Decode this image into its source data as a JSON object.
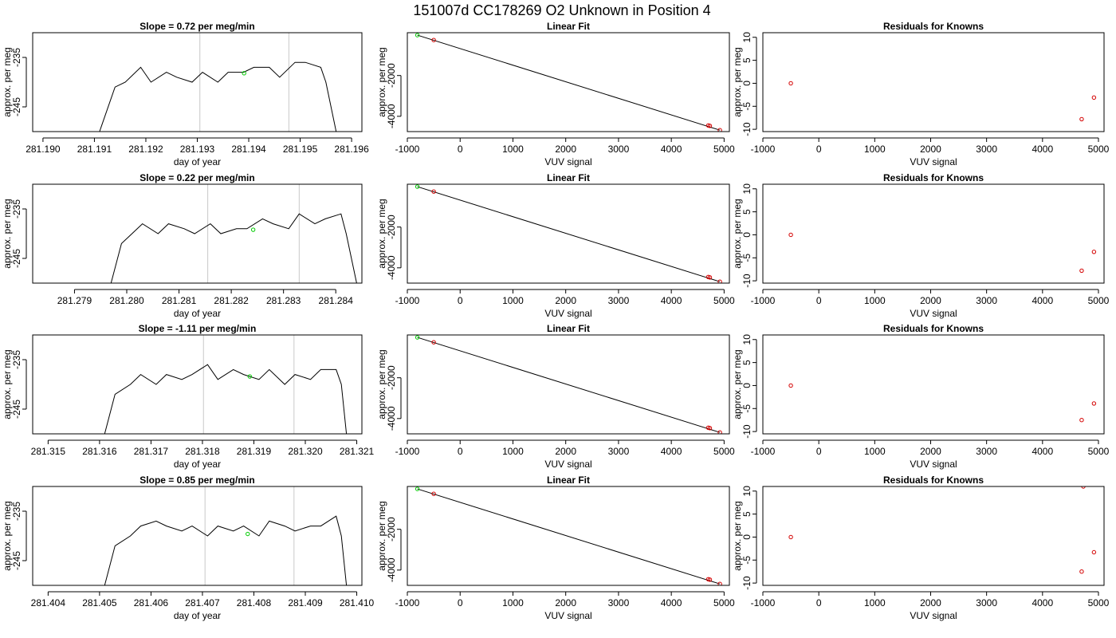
{
  "figure_title": "151007d      CC178269   O2 Unknown in Position  4",
  "chart_data": [
    {
      "id": "ts1",
      "type": "line",
      "title": "Slope =  0.72  per meg/min",
      "xlabel": "day of year",
      "ylabel": "approx. per meg",
      "xlim": [
        281.1898,
        281.1962
      ],
      "ylim": [
        -250,
        -230
      ],
      "x_ticks": [
        "281.190",
        "281.191",
        "281.192",
        "281.193",
        "281.194",
        "281.195",
        "281.196"
      ],
      "y_ticks": [
        "-235",
        "-245"
      ],
      "x": [
        281.1911,
        281.1914,
        281.1916,
        281.1919,
        281.1921,
        281.1924,
        281.1926,
        281.1929,
        281.1931,
        281.1934,
        281.1936,
        281.1939,
        281.1941,
        281.1944,
        281.1946,
        281.1949,
        281.1951,
        281.1954,
        281.1955,
        281.1957
      ],
      "values": [
        -250,
        -241,
        -240,
        -237,
        -240,
        -238,
        -239,
        -240,
        -238,
        -240,
        -238,
        -238,
        -237,
        -237,
        -239,
        -236,
        -236,
        -237,
        -240,
        -250
      ],
      "vlines": [
        281.19305,
        281.19478
      ],
      "marker": {
        "x": 281.19391,
        "y": -238.2
      }
    },
    {
      "id": "fit1",
      "type": "scatter",
      "title": "Linear Fit",
      "xlabel": "VUV signal",
      "ylabel": "approx. per meg",
      "xlim": [
        -1000,
        5100
      ],
      "ylim": [
        -4750,
        100
      ],
      "x_ticks": [
        "-1000",
        "0",
        "1000",
        "2000",
        "3000",
        "4000",
        "5000"
      ],
      "y_ticks": [
        "-2000",
        "-4000"
      ],
      "line": [
        [
          -810,
          -20
        ],
        [
          4920,
          -4680
        ]
      ],
      "green_points": [
        [
          -810,
          -20
        ]
      ],
      "red_points": [
        [
          -500,
          -260
        ],
        [
          4700,
          -4450
        ],
        [
          4730,
          -4470
        ],
        [
          4920,
          -4680
        ]
      ]
    },
    {
      "id": "res1",
      "type": "scatter",
      "title": "Residuals for Knowns",
      "xlabel": "VUV signal",
      "ylabel": "approx. per meg",
      "xlim": [
        -1000,
        5100
      ],
      "ylim": [
        -10.5,
        11
      ],
      "x_ticks": [
        "-1000",
        "0",
        "1000",
        "2000",
        "3000",
        "4000",
        "5000"
      ],
      "y_ticks": [
        "-10",
        "-5",
        "0",
        "5",
        "10"
      ],
      "red_points": [
        [
          -500,
          0
        ],
        [
          4700,
          -7.8
        ],
        [
          4920,
          -3.1
        ]
      ]
    },
    {
      "id": "ts2",
      "type": "line",
      "title": "Slope =  0.22  per meg/min",
      "xlabel": "day of year",
      "ylabel": "approx. per meg",
      "xlim": [
        281.2782,
        281.2845
      ],
      "ylim": [
        -250,
        -230
      ],
      "x_ticks": [
        "281.279",
        "281.280",
        "281.281",
        "281.282",
        "281.283",
        "281.284"
      ],
      "y_ticks": [
        "-235",
        "-245"
      ],
      "x": [
        281.2797,
        281.2799,
        281.2801,
        281.2803,
        281.2806,
        281.2808,
        281.2811,
        281.2813,
        281.2816,
        281.2818,
        281.2821,
        281.2823,
        281.2826,
        281.2828,
        281.2831,
        281.2833,
        281.2836,
        281.2838,
        281.2841,
        281.2842,
        281.2844
      ],
      "values": [
        -250,
        -242,
        -240,
        -238,
        -240,
        -238,
        -239,
        -240,
        -238,
        -240,
        -239,
        -239,
        -237,
        -238,
        -239,
        -236,
        -238,
        -237,
        -236,
        -240,
        -250
      ],
      "vlines": [
        281.28155,
        281.2833
      ],
      "marker": {
        "x": 281.28242,
        "y": -239.2
      }
    },
    {
      "id": "fit2",
      "type": "scatter",
      "title": "Linear Fit",
      "xlabel": "VUV signal",
      "ylabel": "approx. per meg",
      "xlim": [
        -1000,
        5100
      ],
      "ylim": [
        -4750,
        100
      ],
      "x_ticks": [
        "-1000",
        "0",
        "1000",
        "2000",
        "3000",
        "4000",
        "5000"
      ],
      "y_ticks": [
        "-2000",
        "-4000"
      ],
      "line": [
        [
          -810,
          -20
        ],
        [
          4920,
          -4680
        ]
      ],
      "green_points": [
        [
          -810,
          -20
        ]
      ],
      "red_points": [
        [
          -500,
          -260
        ],
        [
          4700,
          -4450
        ],
        [
          4730,
          -4470
        ],
        [
          4920,
          -4680
        ]
      ]
    },
    {
      "id": "res2",
      "type": "scatter",
      "title": "Residuals for Knowns",
      "xlabel": "VUV signal",
      "ylabel": "approx. per meg",
      "xlim": [
        -1000,
        5100
      ],
      "ylim": [
        -10.5,
        11
      ],
      "x_ticks": [
        "-1000",
        "0",
        "1000",
        "2000",
        "3000",
        "4000",
        "5000"
      ],
      "y_ticks": [
        "-10",
        "-5",
        "0",
        "5",
        "10"
      ],
      "red_points": [
        [
          -500,
          0
        ],
        [
          4700,
          -7.8
        ],
        [
          4920,
          -3.7
        ]
      ]
    },
    {
      "id": "ts3",
      "type": "line",
      "title": "Slope =  -1.11  per meg/min",
      "xlabel": "day of year",
      "ylabel": "approx. per meg",
      "xlim": [
        281.3147,
        281.3211
      ],
      "ylim": [
        -250,
        -230
      ],
      "x_ticks": [
        "281.315",
        "281.316",
        "281.317",
        "281.318",
        "281.319",
        "281.320",
        "281.321"
      ],
      "y_ticks": [
        "-235",
        "-245"
      ],
      "x": [
        281.3161,
        281.3163,
        281.3166,
        281.3168,
        281.3171,
        281.3173,
        281.3176,
        281.3178,
        281.3181,
        281.3183,
        281.3186,
        281.3188,
        281.3191,
        281.3193,
        281.3196,
        281.3198,
        281.3201,
        281.3203,
        281.3206,
        281.3207,
        281.3208
      ],
      "values": [
        -250,
        -242,
        -240,
        -238,
        -240,
        -238,
        -239,
        -238,
        -236,
        -239,
        -237,
        -238,
        -239,
        -237,
        -240,
        -238,
        -239,
        -237,
        -237,
        -240,
        -250
      ],
      "vlines": [
        281.31802,
        281.31978
      ],
      "marker": {
        "x": 281.31892,
        "y": -238.4
      }
    },
    {
      "id": "fit3",
      "type": "scatter",
      "title": "Linear Fit",
      "xlabel": "VUV signal",
      "ylabel": "approx. per meg",
      "xlim": [
        -1000,
        5100
      ],
      "ylim": [
        -4750,
        100
      ],
      "x_ticks": [
        "-1000",
        "0",
        "1000",
        "2000",
        "3000",
        "4000",
        "5000"
      ],
      "y_ticks": [
        "-2000",
        "-4000"
      ],
      "line": [
        [
          -810,
          -20
        ],
        [
          4920,
          -4680
        ]
      ],
      "green_points": [
        [
          -810,
          -20
        ]
      ],
      "red_points": [
        [
          -500,
          -260
        ],
        [
          4700,
          -4450
        ],
        [
          4730,
          -4470
        ],
        [
          4920,
          -4680
        ]
      ]
    },
    {
      "id": "res3",
      "type": "scatter",
      "title": "Residuals for Knowns",
      "xlabel": "VUV signal",
      "ylabel": "approx. per meg",
      "xlim": [
        -1000,
        5100
      ],
      "ylim": [
        -10.5,
        11
      ],
      "x_ticks": [
        "-1000",
        "0",
        "1000",
        "2000",
        "3000",
        "4000",
        "5000"
      ],
      "y_ticks": [
        "-10",
        "-5",
        "0",
        "5",
        "10"
      ],
      "red_points": [
        [
          -500,
          0
        ],
        [
          4700,
          -7.5
        ],
        [
          4920,
          -3.9
        ]
      ]
    },
    {
      "id": "ts4",
      "type": "line",
      "title": "Slope =  0.85  per meg/min",
      "xlabel": "day of year",
      "ylabel": "approx. per meg",
      "xlim": [
        281.4037,
        281.4101
      ],
      "ylim": [
        -250,
        -230
      ],
      "x_ticks": [
        "281.404",
        "281.405",
        "281.406",
        "281.407",
        "281.408",
        "281.409",
        "281.410"
      ],
      "y_ticks": [
        "-235",
        "-245"
      ],
      "x": [
        281.4051,
        281.4053,
        281.4056,
        281.4058,
        281.4061,
        281.4063,
        281.4066,
        281.4068,
        281.4071,
        281.4073,
        281.4076,
        281.4078,
        281.4081,
        281.4083,
        281.4086,
        281.4088,
        281.4091,
        281.4093,
        281.4096,
        281.4097,
        281.4098
      ],
      "values": [
        -250,
        -242,
        -240,
        -238,
        -237,
        -238,
        -239,
        -238,
        -240,
        -238,
        -239,
        -238,
        -240,
        -237,
        -238,
        -239,
        -238,
        -238,
        -236,
        -240,
        -250
      ],
      "vlines": [
        281.40705,
        281.40878
      ],
      "marker": {
        "x": 281.40788,
        "y": -239.6
      }
    },
    {
      "id": "fit4",
      "type": "scatter",
      "title": "Linear Fit",
      "xlabel": "VUV signal",
      "ylabel": "approx. per meg",
      "xlim": [
        -1000,
        5100
      ],
      "ylim": [
        -4750,
        100
      ],
      "x_ticks": [
        "-1000",
        "0",
        "1000",
        "2000",
        "3000",
        "4000",
        "5000"
      ],
      "y_ticks": [
        "-2000",
        "-4000"
      ],
      "line": [
        [
          -810,
          -20
        ],
        [
          4920,
          -4680
        ]
      ],
      "green_points": [
        [
          -810,
          -20
        ]
      ],
      "red_points": [
        [
          -500,
          -260
        ],
        [
          4700,
          -4450
        ],
        [
          4730,
          -4470
        ],
        [
          4920,
          -4680
        ]
      ]
    },
    {
      "id": "res4",
      "type": "scatter",
      "title": "Residuals for Knowns",
      "xlabel": "VUV signal",
      "ylabel": "approx. per meg",
      "xlim": [
        -1000,
        5100
      ],
      "ylim": [
        -10.5,
        11
      ],
      "x_ticks": [
        "-1000",
        "0",
        "1000",
        "2000",
        "3000",
        "4000",
        "5000"
      ],
      "y_ticks": [
        "-10",
        "-5",
        "0",
        "5",
        "10"
      ],
      "red_points": [
        [
          -500,
          0
        ],
        [
          4700,
          -7.5
        ],
        [
          4920,
          -3.3
        ],
        [
          4730,
          11
        ]
      ]
    }
  ]
}
